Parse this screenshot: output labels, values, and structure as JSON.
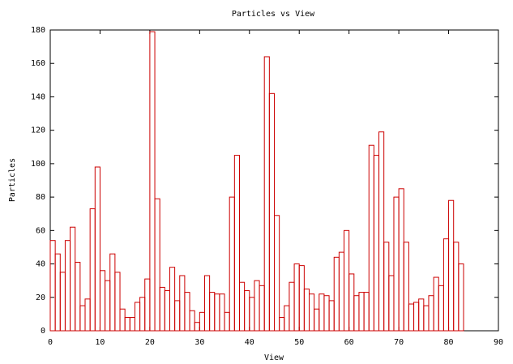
{
  "chart_data": {
    "type": "bar",
    "title": "Particles vs View",
    "xlabel": "View",
    "ylabel": "Particles",
    "x": [
      0,
      1,
      2,
      3,
      4,
      5,
      6,
      7,
      8,
      9,
      10,
      11,
      12,
      13,
      14,
      15,
      16,
      17,
      18,
      19,
      20,
      21,
      22,
      23,
      24,
      25,
      26,
      27,
      28,
      29,
      30,
      31,
      32,
      33,
      34,
      35,
      36,
      37,
      38,
      39,
      40,
      41,
      42,
      43,
      44,
      45,
      46,
      47,
      48,
      49,
      50,
      51,
      52,
      53,
      54,
      55,
      56,
      57,
      58,
      59,
      60,
      61,
      62,
      63,
      64,
      65,
      66,
      67,
      68,
      69,
      70,
      71,
      72,
      73,
      74,
      75,
      76,
      77,
      78,
      79,
      80,
      81,
      82
    ],
    "values": [
      54,
      46,
      35,
      54,
      62,
      41,
      15,
      19,
      73,
      98,
      36,
      30,
      46,
      35,
      13,
      8,
      8,
      17,
      20,
      31,
      179,
      79,
      26,
      24,
      38,
      18,
      33,
      23,
      12,
      5,
      11,
      33,
      23,
      22,
      22,
      11,
      80,
      105,
      29,
      24,
      20,
      30,
      27,
      164,
      142,
      69,
      8,
      15,
      29,
      40,
      39,
      25,
      22,
      13,
      22,
      21,
      18,
      44,
      47,
      60,
      34,
      21,
      23,
      23,
      111,
      105,
      119,
      53,
      33,
      80,
      85,
      53,
      16,
      17,
      19,
      15,
      21,
      32,
      27,
      55,
      78,
      53,
      40
    ],
    "color": "#cc0000",
    "xlim": [
      0,
      90
    ],
    "xticks": [
      0,
      10,
      20,
      30,
      40,
      50,
      60,
      70,
      80,
      90
    ],
    "ylim": [
      0,
      180
    ],
    "yticks": [
      0,
      20,
      40,
      60,
      80,
      100,
      120,
      140,
      160,
      180
    ]
  }
}
